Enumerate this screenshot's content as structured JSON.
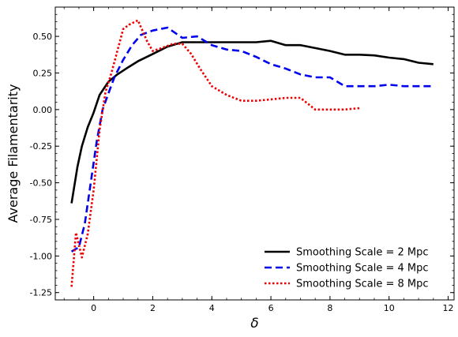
{
  "chart_data": {
    "type": "line",
    "xlabel": "δ",
    "ylabel": "Average Filamentarity",
    "xlim": [
      -1.3,
      12.2
    ],
    "ylim": [
      -1.3,
      0.7
    ],
    "xticks": [
      "0",
      "2",
      "4",
      "6",
      "8",
      "10",
      "12"
    ],
    "xtick_values": [
      0,
      2,
      4,
      6,
      8,
      10,
      12
    ],
    "yticks": [
      "-1.25",
      "-1.00",
      "-0.75",
      "-0.50",
      "-0.25",
      "0.00",
      "0.25",
      "0.50"
    ],
    "ytick_values": [
      -1.25,
      -1.0,
      -0.75,
      -0.5,
      -0.25,
      0.0,
      0.25,
      0.5
    ],
    "minor_x_step": 0.5,
    "minor_y_step": 0.05,
    "grid": false,
    "legend_position": "lower-right",
    "series": [
      {
        "name": "Smoothing Scale = 2 Mpc",
        "color": "#000000",
        "dash": "solid",
        "x": [
          -0.75,
          -0.55,
          -0.4,
          -0.2,
          0.0,
          0.2,
          0.5,
          0.8,
          1.1,
          1.5,
          2.0,
          2.5,
          3.0,
          3.5,
          4.0,
          4.5,
          5.0,
          5.5,
          6.0,
          6.5,
          7.0,
          7.5,
          8.0,
          8.5,
          9.0,
          9.5,
          10.0,
          10.5,
          11.0,
          11.5
        ],
        "y": [
          -0.64,
          -0.39,
          -0.25,
          -0.12,
          -0.02,
          0.1,
          0.19,
          0.24,
          0.28,
          0.33,
          0.38,
          0.43,
          0.46,
          0.46,
          0.46,
          0.46,
          0.46,
          0.46,
          0.47,
          0.44,
          0.44,
          0.42,
          0.4,
          0.375,
          0.375,
          0.37,
          0.355,
          0.345,
          0.32,
          0.31
        ]
      },
      {
        "name": "Smoothing Scale = 4 Mpc",
        "color": "#0000ee",
        "dash": "dashed",
        "x": [
          -0.75,
          -0.5,
          -0.3,
          -0.1,
          0.1,
          0.3,
          0.5,
          0.7,
          1.0,
          1.3,
          1.6,
          2.0,
          2.5,
          3.0,
          3.5,
          4.0,
          4.5,
          5.0,
          5.5,
          6.0,
          6.5,
          7.0,
          7.5,
          8.0,
          8.5,
          9.0,
          9.5,
          10.0,
          10.5,
          11.0,
          11.5
        ],
        "y": [
          -0.97,
          -0.94,
          -0.78,
          -0.5,
          -0.22,
          0.0,
          0.11,
          0.22,
          0.34,
          0.44,
          0.51,
          0.54,
          0.56,
          0.49,
          0.5,
          0.44,
          0.41,
          0.4,
          0.36,
          0.31,
          0.28,
          0.24,
          0.22,
          0.22,
          0.16,
          0.16,
          0.16,
          0.17,
          0.16,
          0.16,
          0.16
        ]
      },
      {
        "name": "Smoothing Scale = 8 Mpc",
        "color": "#ee0000",
        "dash": "dotted",
        "x": [
          -0.75,
          -0.6,
          -0.4,
          -0.2,
          0.0,
          0.2,
          0.4,
          0.6,
          0.8,
          1.0,
          1.2,
          1.5,
          1.8,
          2.0,
          2.3,
          2.7,
          3.0,
          3.3,
          3.6,
          4.0,
          4.5,
          5.0,
          5.5,
          6.0,
          6.5,
          7.0,
          7.5,
          8.0,
          8.5,
          9.0
        ],
        "y": [
          -1.21,
          -0.84,
          -1.01,
          -0.85,
          -0.55,
          -0.14,
          0.12,
          0.25,
          0.4,
          0.55,
          0.58,
          0.61,
          0.47,
          0.4,
          0.42,
          0.45,
          0.45,
          0.38,
          0.28,
          0.16,
          0.1,
          0.06,
          0.06,
          0.07,
          0.08,
          0.08,
          0.0,
          0.0,
          0.0,
          0.01
        ]
      }
    ]
  }
}
